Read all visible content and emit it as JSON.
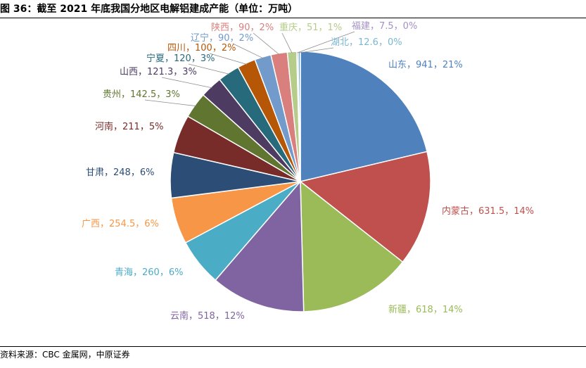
{
  "title": "图 36：截至 2021 年底我国分地区电解铝建成产能（单位：万吨）",
  "source": "资料来源：CBC 金属网，中原证券",
  "chart_data": {
    "type": "pie",
    "title": "图 36：截至 2021 年底我国分地区电解铝建成产能（单位：万吨）",
    "unit": "万吨",
    "slices": [
      {
        "name": "山东",
        "value": 941,
        "pct": "21%",
        "label": "山东，941，21%",
        "color": "#4F81BD"
      },
      {
        "name": "内蒙古",
        "value": 631.5,
        "pct": "14%",
        "label": "内蒙古，631.5，14%",
        "color": "#C0504D"
      },
      {
        "name": "新疆",
        "value": 618,
        "pct": "14%",
        "label": "新疆，618，14%",
        "color": "#9BBB59"
      },
      {
        "name": "云南",
        "value": 518,
        "pct": "12%",
        "label": "云南，518，12%",
        "color": "#8064A2"
      },
      {
        "name": "青海",
        "value": 260,
        "pct": "6%",
        "label": "青海，260，6%",
        "color": "#4BACC6"
      },
      {
        "name": "广西",
        "value": 254.5,
        "pct": "6%",
        "label": "广西，254.5，6%",
        "color": "#F79646"
      },
      {
        "name": "甘肃",
        "value": 248,
        "pct": "6%",
        "label": "甘肃，248，6%",
        "color": "#2C4D75"
      },
      {
        "name": "河南",
        "value": 211,
        "pct": "5%",
        "label": "河南，211，5%",
        "color": "#772C2A"
      },
      {
        "name": "贵州",
        "value": 142.5,
        "pct": "3%",
        "label": "贵州，142.5，3%",
        "color": "#5F7530"
      },
      {
        "name": "山西",
        "value": 121.3,
        "pct": "3%",
        "label": "山西，121.3，3%",
        "color": "#4D3B62"
      },
      {
        "name": "宁夏",
        "value": 120,
        "pct": "3%",
        "label": "宁夏，120，3%",
        "color": "#276A7C"
      },
      {
        "name": "四川",
        "value": 100,
        "pct": "2%",
        "label": "四川，100，2%",
        "color": "#B65708"
      },
      {
        "name": "辽宁",
        "value": 90,
        "pct": "2%",
        "label": "辽宁，90，2%",
        "color": "#729ACA"
      },
      {
        "name": "陕西",
        "value": 90,
        "pct": "2%",
        "label": "陕西，90，2%",
        "color": "#D9807E"
      },
      {
        "name": "重庆",
        "value": 51,
        "pct": "1%",
        "label": "重庆，51，1%",
        "color": "#B5CC8A"
      },
      {
        "name": "福建",
        "value": 7.5,
        "pct": "0%",
        "label": "福建，7.5，0%",
        "color": "#A590C4"
      },
      {
        "name": "湖北",
        "value": 12.6,
        "pct": "0%",
        "label": "湖北，12.6，0%",
        "color": "#7AB7D1"
      }
    ]
  }
}
